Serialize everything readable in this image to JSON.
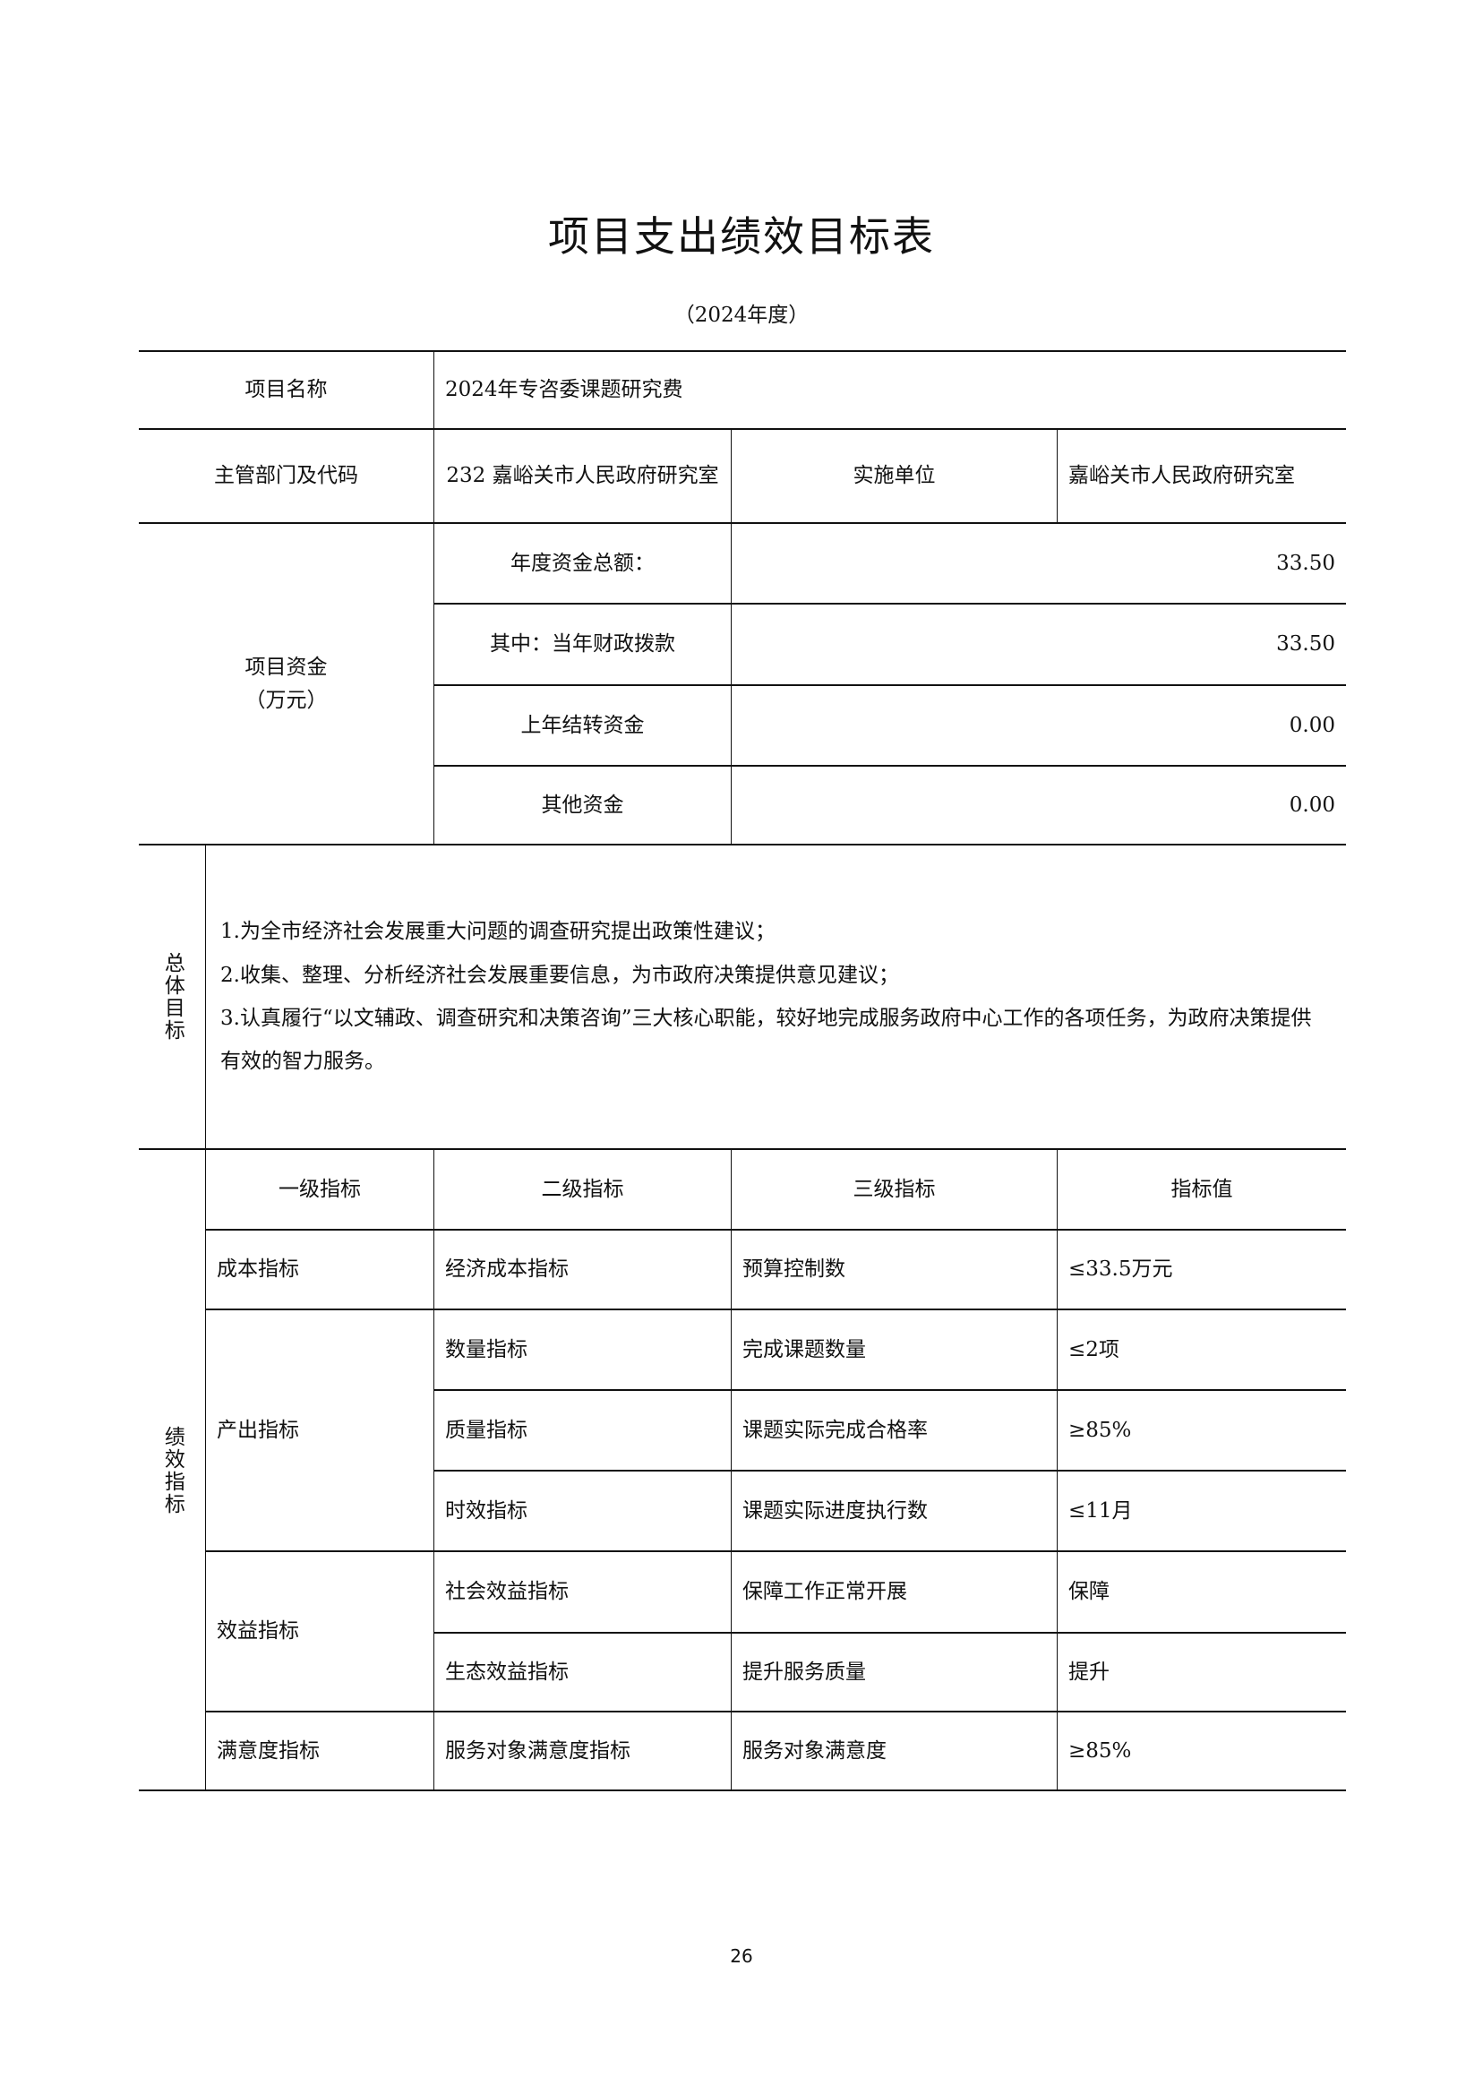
{
  "title": "项目支出绩效目标表",
  "subtitle": "（2024年度）",
  "project": {
    "name_label": "项目名称",
    "name_value": "2024年专咨委课题研究费",
    "dept_label": "主管部门及代码",
    "dept_value": "232 嘉峪关市人民政府研究室",
    "impl_label": "实施单位",
    "impl_value": "嘉峪关市人民政府研究室"
  },
  "funds": {
    "label": "项目资金",
    "unit": "（万元）",
    "rows": [
      {
        "label": "年度资金总额：",
        "value": "33.50"
      },
      {
        "label": "其中：当年财政拨款",
        "value": "33.50"
      },
      {
        "label": "上年结转资金",
        "value": "0.00"
      },
      {
        "label": "其他资金",
        "value": "0.00"
      }
    ]
  },
  "goals": {
    "label": "总体目标",
    "items": [
      "1.为全市经济社会发展重大问题的调查研究提出政策性建议；",
      "2.收集、整理、分析经济社会发展重要信息，为市政府决策提供意见建议；",
      "3.认真履行“以文辅政、调查研究和决策咨询”三大核心职能，较好地完成服务政府中心工作的各项任务，为政府决策提供有效的智力服务。"
    ]
  },
  "indicators": {
    "label": "绩效指标",
    "headers": [
      "一级指标",
      "二级指标",
      "三级指标",
      "指标值"
    ],
    "level1": [
      "成本指标",
      "产出指标",
      "效益指标",
      "满意度指标"
    ],
    "rows": [
      {
        "l2": "经济成本指标",
        "l3": "预算控制数",
        "value": "≤33.5万元"
      },
      {
        "l2": "数量指标",
        "l3": "完成课题数量",
        "value": "≤2项"
      },
      {
        "l2": "质量指标",
        "l3": "课题实际完成合格率",
        "value": "≥85%"
      },
      {
        "l2": "时效指标",
        "l3": "课题实际进度执行数",
        "value": "≤11月"
      },
      {
        "l2": "社会效益指标",
        "l3": "保障工作正常开展",
        "value": "保障"
      },
      {
        "l2": "生态效益指标",
        "l3": "提升服务质量",
        "value": "提升"
      },
      {
        "l2": "服务对象满意度指标",
        "l3": "服务对象满意度",
        "value": "≥85%"
      }
    ]
  },
  "page_number": "26"
}
